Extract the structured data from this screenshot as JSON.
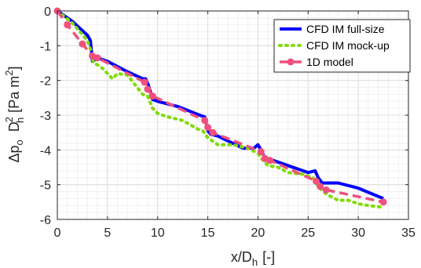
{
  "chart_data": {
    "type": "line",
    "xlabel": {
      "main": "x/D",
      "sub": "h",
      "unit": "[-]"
    },
    "ylabel": {
      "delta": "Δp",
      "p_sub": "o",
      "d": "D",
      "d_sup": "2",
      "d_sub": "h",
      "unit": "[Pa m",
      "unit_sup": "2",
      "unit_end": "]"
    },
    "xlim": [
      0,
      35
    ],
    "ylim": [
      -6,
      0
    ],
    "xticks": [
      0,
      5,
      10,
      15,
      20,
      25,
      30,
      35
    ],
    "yticks": [
      0,
      -1,
      -2,
      -3,
      -4,
      -5,
      -6
    ],
    "xtick_labels": [
      "0",
      "5",
      "10",
      "15",
      "20",
      "25",
      "30",
      "35"
    ],
    "ytick_labels": [
      "0",
      "-1",
      "-2",
      "-3",
      "-4",
      "-5",
      "-6"
    ],
    "grid": true,
    "minor_grid": true,
    "legend_position": "top-right",
    "series": [
      {
        "name": "CFD IM full-size",
        "color": "#0000ff",
        "style": "solid",
        "x": [
          0,
          1.5,
          3.0,
          3.3,
          3.5,
          4.0,
          5.0,
          7.0,
          8.5,
          8.8,
          9.1,
          9.5,
          10.0,
          12.0,
          14.2,
          14.7,
          15.0,
          15.3,
          16.0,
          18.5,
          19.6,
          20.0,
          20.3,
          20.7,
          21.0,
          23.0,
          25.0,
          25.7,
          26.0,
          26.4,
          27.0,
          28.0,
          30.0,
          32.5
        ],
        "y": [
          0,
          -0.3,
          -0.7,
          -0.85,
          -1.45,
          -1.35,
          -1.45,
          -1.75,
          -1.95,
          -1.95,
          -2.15,
          -2.55,
          -2.6,
          -2.75,
          -3.0,
          -3.05,
          -3.45,
          -3.55,
          -3.6,
          -3.95,
          -3.95,
          -3.85,
          -4.0,
          -4.25,
          -4.25,
          -4.45,
          -4.65,
          -4.6,
          -4.8,
          -4.95,
          -4.95,
          -4.95,
          -5.1,
          -5.4
        ]
      },
      {
        "name": "CFD IM mock-up",
        "color": "#7fdc00",
        "style": "dotted",
        "x": [
          0,
          1.5,
          3.0,
          3.3,
          3.6,
          4.0,
          4.5,
          5.5,
          6.0,
          7.0,
          8.5,
          9.0,
          9.5,
          10.0,
          11.0,
          12.5,
          14.0,
          14.5,
          15.0,
          16.0,
          17.5,
          19.0,
          20.0,
          20.5,
          21.0,
          22.0,
          23.0,
          24.5,
          25.5,
          26.0,
          26.5,
          27.0,
          28.0,
          29.0,
          30.0,
          31.0,
          32.5
        ],
        "y": [
          0,
          -0.35,
          -0.85,
          -1.1,
          -1.5,
          -1.55,
          -1.65,
          -1.95,
          -1.8,
          -1.85,
          -2.4,
          -2.45,
          -2.8,
          -2.95,
          -3.05,
          -3.15,
          -3.4,
          -3.45,
          -3.65,
          -3.85,
          -3.85,
          -3.95,
          -4.1,
          -4.3,
          -4.45,
          -4.5,
          -4.65,
          -4.7,
          -4.8,
          -5.05,
          -5.2,
          -5.3,
          -5.45,
          -5.45,
          -5.55,
          -5.6,
          -5.65
        ]
      },
      {
        "name": "1D model",
        "color": "#f0507c",
        "style": "dashed",
        "x": [
          0,
          1.0,
          2.5,
          3.5,
          4.0,
          8.7,
          9.0,
          9.5,
          14.7,
          15.0,
          15.5,
          20.3,
          20.7,
          21.2,
          25.8,
          26.2,
          26.8,
          32.5
        ],
        "y": [
          0,
          -0.4,
          -0.95,
          -1.3,
          -1.35,
          -2.05,
          -2.25,
          -2.45,
          -3.15,
          -3.35,
          -3.5,
          -4.05,
          -4.25,
          -4.3,
          -4.9,
          -5.05,
          -5.15,
          -5.5
        ]
      }
    ]
  }
}
